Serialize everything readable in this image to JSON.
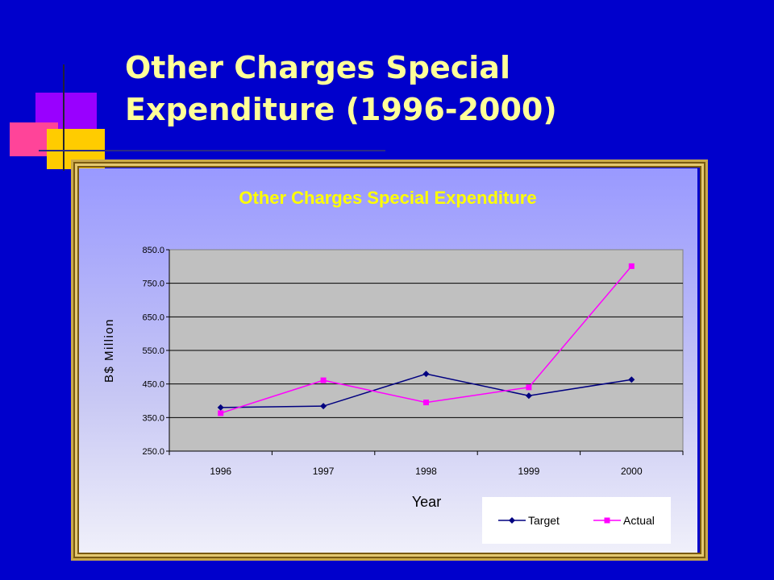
{
  "slide": {
    "title_line1": "Other Charges Special",
    "title_line2": "Expenditure (1996-2000)"
  },
  "colors": {
    "background": "#0000cc",
    "title": "#ffff99",
    "target": "#000080",
    "actual": "#ff00ff",
    "plot_area": "#c0c0c0"
  },
  "chart_data": {
    "type": "line",
    "title": "Other Charges Special Expenditure",
    "xlabel": "Year",
    "ylabel": "B$ Million",
    "categories": [
      "1996",
      "1997",
      "1998",
      "1999",
      "2000"
    ],
    "ylim": [
      250.0,
      850.0
    ],
    "yticks": [
      "850.0",
      "750.0",
      "650.0",
      "550.0",
      "450.0",
      "350.0",
      "250.0"
    ],
    "grid": true,
    "legend": "bottom-right",
    "series": [
      {
        "name": "Target",
        "marker": "diamond",
        "values": [
          380,
          384,
          480,
          415,
          463
        ]
      },
      {
        "name": "Actual",
        "marker": "square",
        "values": [
          363,
          461,
          395,
          440,
          801
        ]
      }
    ]
  }
}
